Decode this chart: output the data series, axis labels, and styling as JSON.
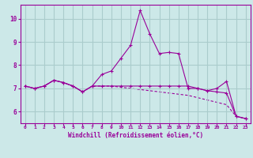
{
  "xlabel": "Windchill (Refroidissement éolien,°C)",
  "x_hours": [
    0,
    1,
    2,
    3,
    4,
    5,
    6,
    7,
    8,
    9,
    10,
    11,
    12,
    13,
    14,
    15,
    16,
    17,
    18,
    19,
    20,
    21,
    22,
    23
  ],
  "line1_y": [
    7.1,
    7.0,
    7.1,
    7.35,
    7.25,
    7.1,
    6.85,
    7.1,
    7.6,
    7.75,
    8.3,
    8.85,
    10.35,
    9.35,
    8.5,
    8.55,
    8.5,
    7.0,
    7.0,
    6.9,
    7.0,
    7.3,
    5.8,
    5.7
  ],
  "line2_y": [
    7.1,
    7.0,
    7.1,
    7.35,
    7.25,
    7.1,
    6.85,
    7.1,
    7.1,
    7.1,
    7.1,
    7.1,
    7.1,
    7.1,
    7.1,
    7.1,
    7.1,
    7.1,
    7.0,
    6.9,
    6.85,
    6.8,
    5.8,
    5.7
  ],
  "line3_y": [
    7.1,
    7.0,
    7.1,
    7.35,
    7.25,
    7.1,
    6.85,
    7.1,
    7.1,
    7.1,
    7.05,
    7.0,
    6.95,
    6.9,
    6.85,
    6.8,
    6.75,
    6.7,
    6.6,
    6.5,
    6.4,
    6.3,
    5.8,
    5.7
  ],
  "line_color": "#990099",
  "bg_color": "#cce8e8",
  "grid_color": "#aacccc",
  "ylim": [
    5.5,
    10.6
  ],
  "yticks": [
    6,
    7,
    8,
    9,
    10
  ],
  "xticks": [
    0,
    1,
    2,
    3,
    4,
    5,
    6,
    7,
    8,
    9,
    10,
    11,
    12,
    13,
    14,
    15,
    16,
    17,
    18,
    19,
    20,
    21,
    22,
    23
  ]
}
